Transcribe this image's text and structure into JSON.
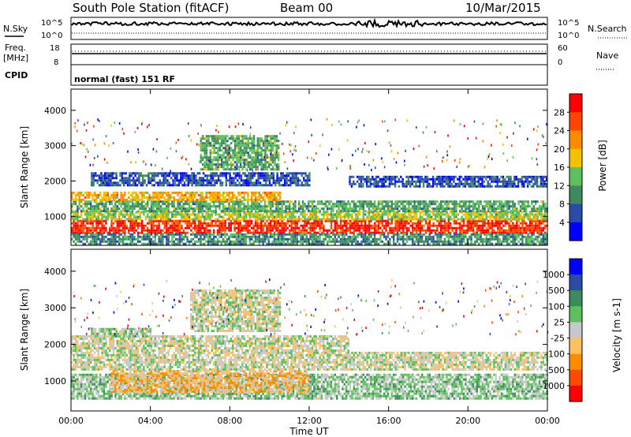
{
  "header": {
    "title": "South Pole Station (fitACF)",
    "beam": "Beam 00",
    "date": "10/Mar/2015"
  },
  "panels": {
    "sky_noise": {
      "left_label": "N.Sky",
      "right_label": "N.Search",
      "left_ticks": [
        "10^5",
        "10^0"
      ],
      "right_ticks": [
        "10^5",
        "10^0"
      ]
    },
    "frequency": {
      "left_label_line1": "Freq.",
      "left_label_line2": "[MHz]",
      "left_ticks": [
        "18",
        "8"
      ],
      "right_label": "Nave",
      "right_ticks": [
        "60",
        "0"
      ]
    },
    "cpid": {
      "label": "CPID",
      "text": "normal (fast) 151 RF"
    }
  },
  "colors": {
    "power": [
      "#0000ff",
      "#2a4ca6",
      "#3d8a5c",
      "#5cc05c",
      "#f2c200",
      "#ff8c00",
      "#ff4500",
      "#ff0000"
    ],
    "velocity": [
      "#ff0000",
      "#ff4a00",
      "#ff8c00",
      "#ffc060",
      "#c8c8c8",
      "#5cc05c",
      "#3d8a5c",
      "#2a4ca6",
      "#0000ff"
    ]
  },
  "chart_data": [
    {
      "type": "heatmap",
      "name": "power",
      "ylabel": "Slant Range [km]",
      "yticks": [
        1000,
        2000,
        3000,
        4000
      ],
      "ylim": [
        180,
        4600
      ],
      "xlim": [
        0,
        24
      ],
      "colorbar": {
        "label": "Power [dB]",
        "ticks": [
          "4",
          "8",
          "12",
          "16",
          "20",
          "24",
          "28"
        ],
        "range": [
          0,
          32
        ]
      },
      "bands": [
        {
          "x0": 0,
          "x1": 24,
          "y0": 520,
          "y1": 900,
          "level": 28
        },
        {
          "x0": 0,
          "x1": 24,
          "y0": 900,
          "y1": 1150,
          "level": 16
        },
        {
          "x0": 0,
          "x1": 24,
          "y0": 1150,
          "y1": 1450,
          "level": 12
        },
        {
          "x0": 0,
          "x1": 10.5,
          "y0": 1450,
          "y1": 1700,
          "level": 20
        },
        {
          "x0": 1,
          "x1": 12,
          "y0": 1850,
          "y1": 2250,
          "level": 6
        },
        {
          "x0": 14,
          "x1": 24,
          "y0": 1850,
          "y1": 2150,
          "level": 6
        },
        {
          "x0": 6.5,
          "x1": 10.5,
          "y0": 2300,
          "y1": 3300,
          "level": 12
        },
        {
          "x0": 0,
          "x1": 24,
          "y0": 200,
          "y1": 520,
          "level": 10
        }
      ]
    },
    {
      "type": "heatmap",
      "name": "velocity",
      "ylabel": "Slant Range [km]",
      "xlabel": "Time UT",
      "yticks": [
        1000,
        2000,
        3000,
        4000
      ],
      "ylim": [
        180,
        4600
      ],
      "xlim": [
        0,
        24
      ],
      "xticks": [
        "00:00",
        "04:00",
        "08:00",
        "12:00",
        "16:00",
        "20:00",
        "00:00"
      ],
      "colorbar": {
        "label": "Velocity [m s-1]",
        "ticks": [
          "1000",
          "500",
          "100",
          "25",
          "-25",
          "-100",
          "-500",
          "-1000"
        ],
        "range": [
          -1200,
          1200
        ]
      },
      "bands": [
        {
          "x0": 0,
          "x1": 24,
          "y0": 520,
          "y1": 1200,
          "level": 200
        },
        {
          "x0": 2,
          "x1": 12,
          "y0": 700,
          "y1": 1300,
          "level": -300
        },
        {
          "x0": 0,
          "x1": 24,
          "y0": 1300,
          "y1": 1800,
          "level": 0
        },
        {
          "x0": 0,
          "x1": 14,
          "y0": 1800,
          "y1": 2250,
          "level": 0
        },
        {
          "x0": 1,
          "x1": 4,
          "y0": 2250,
          "y1": 2450,
          "level": 150
        },
        {
          "x0": 6,
          "x1": 10.5,
          "y0": 2400,
          "y1": 3500,
          "level": 0
        }
      ]
    }
  ]
}
